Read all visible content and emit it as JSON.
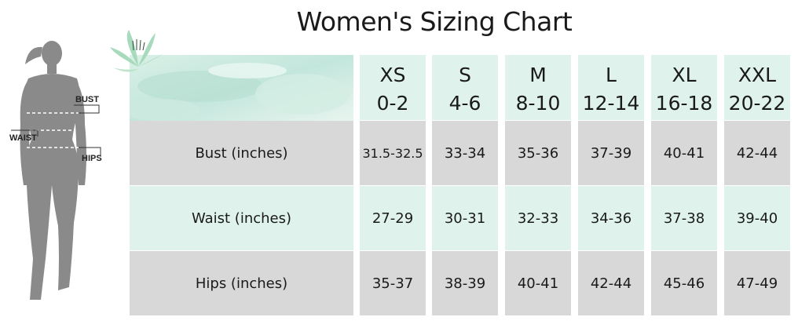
{
  "title": "Women's Sizing Chart",
  "figure_labels": {
    "bust": "BUST",
    "waist": "WAIST",
    "hips": "HIPS"
  },
  "colors": {
    "header_bg": "#dff3ec",
    "gray_row": "#d8d8d8",
    "mint_row": "#dff3ec",
    "silhouette": "#8a8a8a"
  },
  "sizes": [
    {
      "label": "XS",
      "range": "0-2"
    },
    {
      "label": "S",
      "range": "4-6"
    },
    {
      "label": "M",
      "range": "8-10"
    },
    {
      "label": "L",
      "range": "12-14"
    },
    {
      "label": "XL",
      "range": "16-18"
    },
    {
      "label": "XXL",
      "range": "20-22"
    }
  ],
  "rows": [
    {
      "label": "Bust (inches)",
      "values": [
        "31.5-32.5",
        "33-34",
        "35-36",
        "37-39",
        "40-41",
        "42-44"
      ]
    },
    {
      "label": "Waist (inches)",
      "values": [
        "27-29",
        "30-31",
        "32-33",
        "34-36",
        "37-38",
        "39-40"
      ]
    },
    {
      "label": "Hips (inches)",
      "values": [
        "35-37",
        "38-39",
        "40-41",
        "42-44",
        "45-46",
        "47-49"
      ]
    }
  ]
}
